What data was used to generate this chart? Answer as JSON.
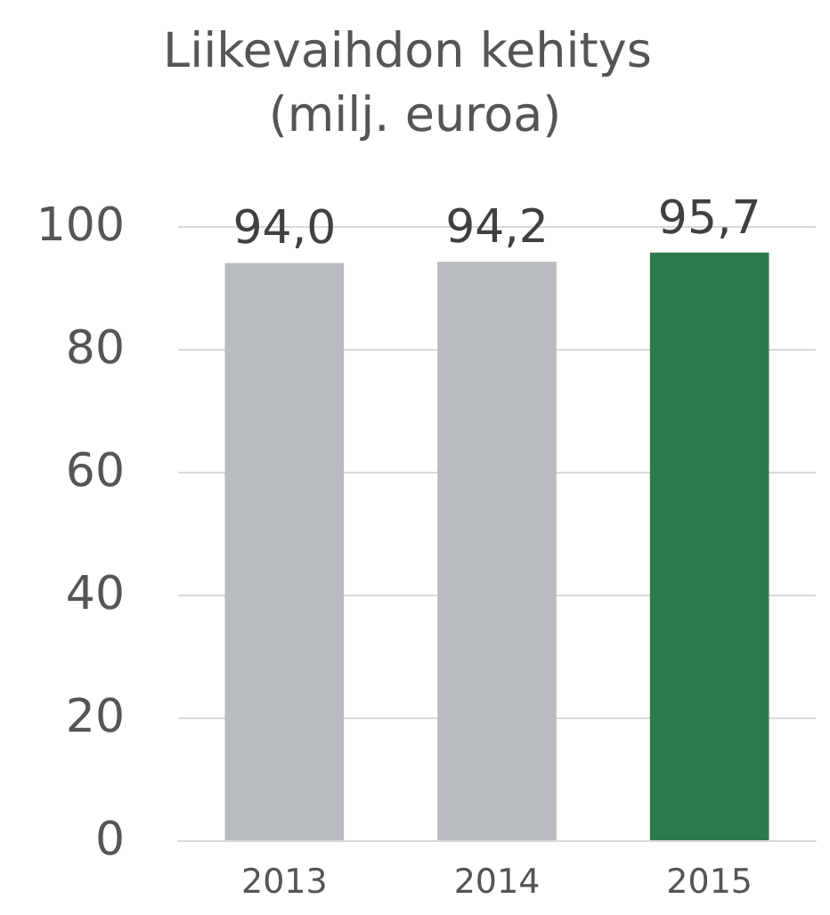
{
  "chart_data": {
    "type": "bar",
    "title": "Liikevaihdon kehitys (milj. euroa)",
    "categories": [
      "2013",
      "2014",
      "2015"
    ],
    "values": [
      94.0,
      94.2,
      95.7
    ],
    "colors": [
      "#b9bcbf",
      "#b9bcbf",
      "#2f7a4c"
    ],
    "value_labels": [
      "94,0",
      "94,2",
      "95,7"
    ],
    "ylim": [
      0,
      100
    ],
    "yticks": [
      0,
      20,
      40,
      60,
      80,
      100
    ],
    "grid": "y"
  }
}
